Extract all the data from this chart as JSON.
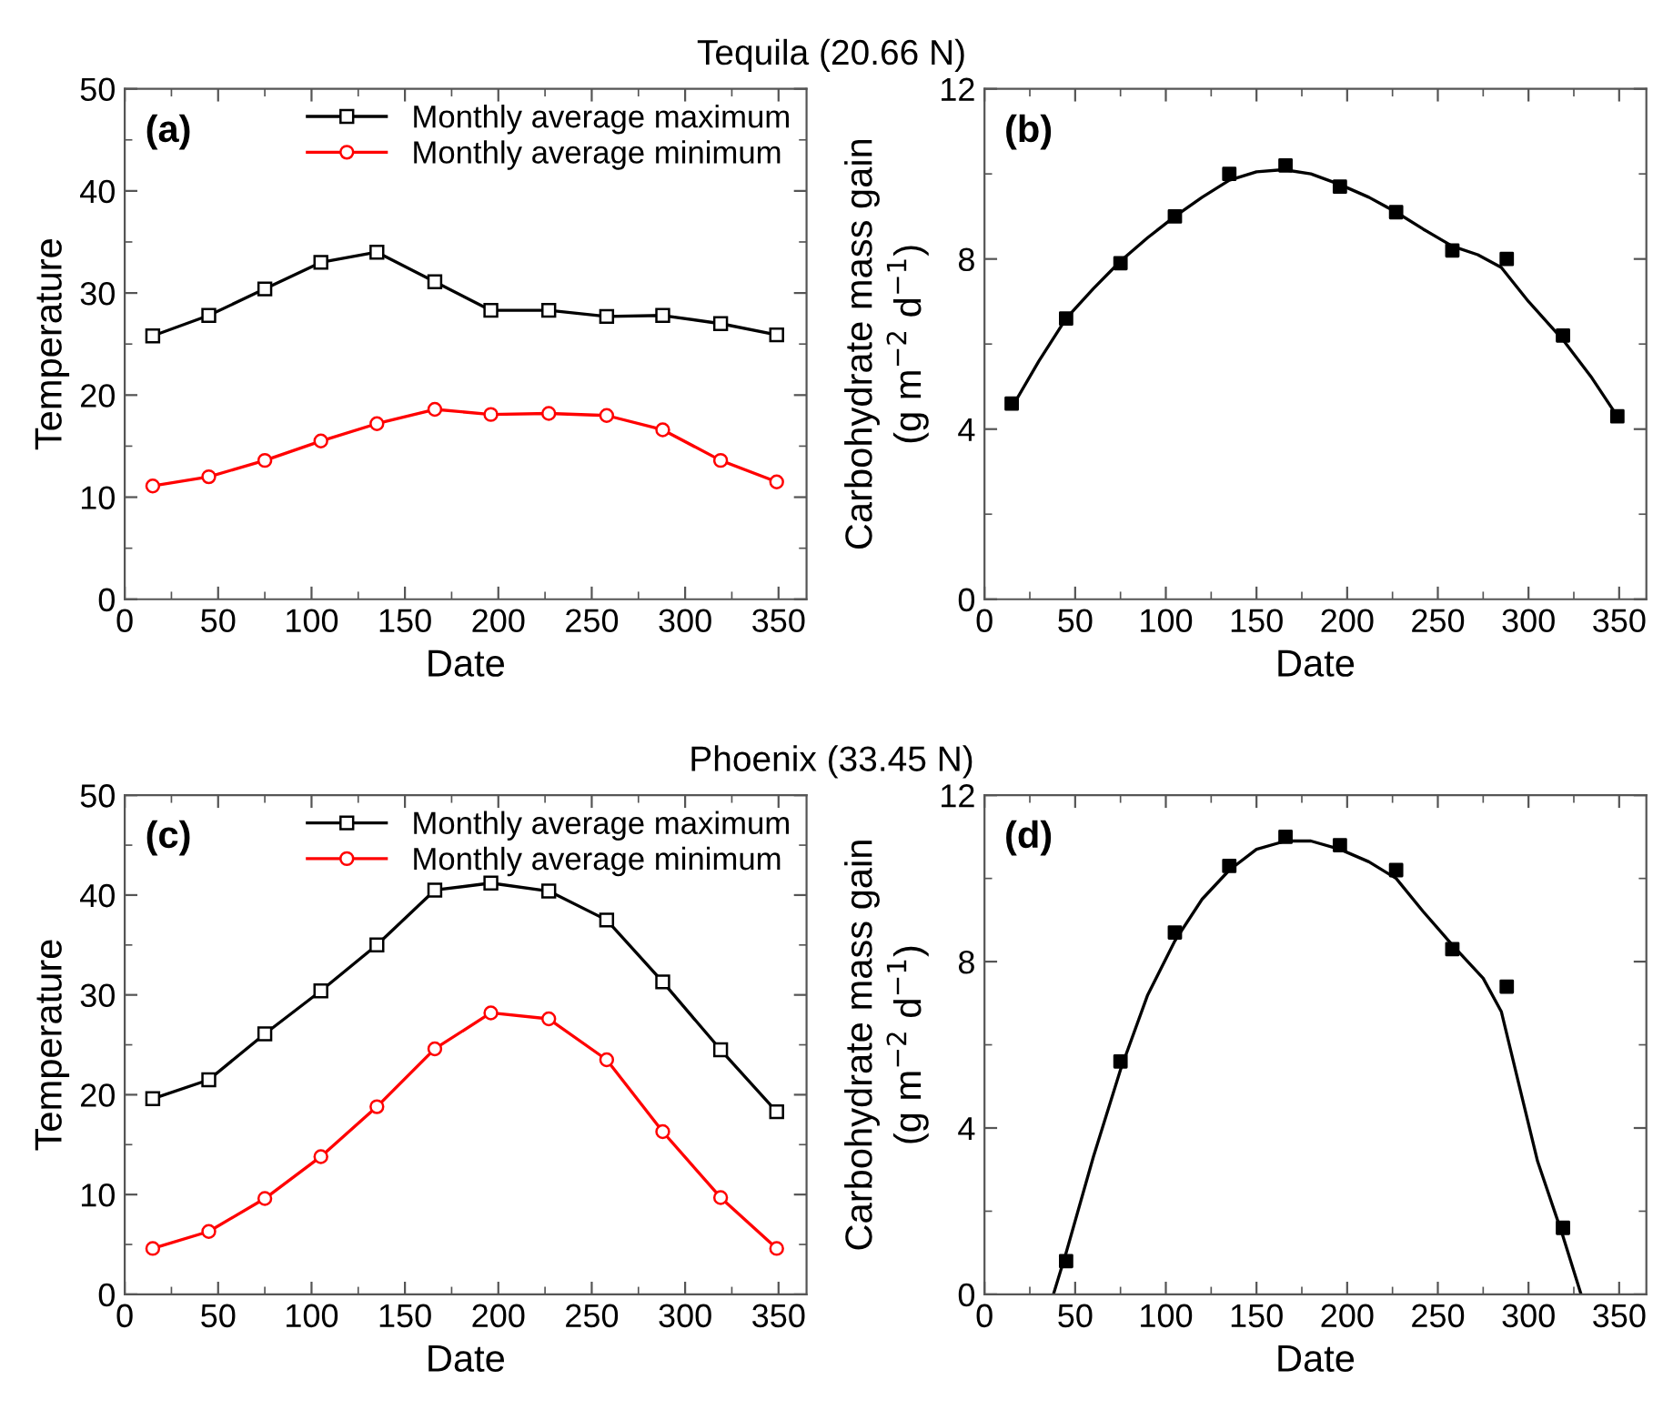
{
  "chart_data": [
    {
      "type": "line",
      "title": "Tequila (20.66 N)",
      "xlabel": "Date",
      "ylabel": "Temperature",
      "annotations": [
        "(a)"
      ],
      "xlim": [
        0,
        365
      ],
      "xticks": [
        0,
        50,
        100,
        150,
        200,
        250,
        300,
        350
      ],
      "ylim": [
        0,
        50
      ],
      "yticks": [
        0,
        10,
        20,
        30,
        40,
        50
      ],
      "grid": false,
      "legend": "top right",
      "x": [
        15,
        45,
        75,
        105,
        135,
        166,
        196,
        227,
        258,
        288,
        319,
        349
      ],
      "series": [
        {
          "name": "Monthly average maximum",
          "color": "#000000",
          "marker": "square",
          "values": [
            25.8,
            27.8,
            30.4,
            33.0,
            34.0,
            31.1,
            28.3,
            28.3,
            27.7,
            27.8,
            27.0,
            25.9
          ]
        },
        {
          "name": "Monthly average minimum",
          "color": "#ff0000",
          "marker": "circle",
          "values": [
            11.1,
            12.0,
            13.6,
            15.5,
            17.2,
            18.6,
            18.1,
            18.2,
            18.0,
            16.6,
            13.6,
            11.5
          ]
        }
      ]
    },
    {
      "type": "scatter",
      "xlabel": "Date",
      "ylabel": "Carbohydrate mass gain\n(g m$^{−2}$ d$^{−1}$)",
      "annotations": [
        "(b)"
      ],
      "xlim": [
        0,
        365
      ],
      "xticks": [
        0,
        50,
        100,
        150,
        200,
        250,
        300,
        350
      ],
      "ylim": [
        0,
        12
      ],
      "yticks": [
        0,
        4,
        8,
        12
      ],
      "grid": false,
      "x": [
        15,
        45,
        75,
        105,
        135,
        166,
        196,
        227,
        258,
        288,
        319,
        349
      ],
      "series": [
        {
          "color": "#000000",
          "marker": "square",
          "values": [
            4.6,
            6.6,
            7.9,
            9.0,
            10.0,
            10.2,
            9.7,
            9.1,
            8.2,
            8.0,
            6.2,
            4.3
          ]
        },
        {
          "type": "line",
          "color": "#000000",
          "marker": "none",
          "x": [
            15,
            30,
            45,
            60,
            75,
            90,
            105,
            120,
            135,
            150,
            165,
            180,
            196,
            212,
            227,
            242,
            258,
            272,
            285,
            300,
            319,
            335,
            349
          ],
          "values": [
            4.5,
            5.6,
            6.6,
            7.3,
            7.95,
            8.5,
            9.0,
            9.45,
            9.85,
            10.05,
            10.1,
            10.0,
            9.75,
            9.45,
            9.1,
            8.7,
            8.3,
            8.1,
            7.8,
            7.0,
            6.1,
            5.2,
            4.3
          ]
        }
      ]
    },
    {
      "type": "line",
      "title": "Phoenix (33.45 N)",
      "xlabel": "Date",
      "ylabel": "Temperature",
      "annotations": [
        "(c)"
      ],
      "xlim": [
        0,
        365
      ],
      "xticks": [
        0,
        50,
        100,
        150,
        200,
        250,
        300,
        350
      ],
      "ylim": [
        0,
        50
      ],
      "yticks": [
        0,
        10,
        20,
        30,
        40,
        50
      ],
      "grid": false,
      "legend": "top right",
      "x": [
        15,
        45,
        75,
        105,
        135,
        166,
        196,
        227,
        258,
        288,
        319,
        349
      ],
      "series": [
        {
          "name": "Monthly average maximum",
          "color": "#000000",
          "marker": "square",
          "values": [
            19.6,
            21.5,
            26.1,
            30.4,
            35.0,
            40.5,
            41.2,
            40.4,
            37.5,
            31.3,
            24.5,
            18.3
          ]
        },
        {
          "name": "Monthly average minimum",
          "color": "#ff0000",
          "marker": "circle",
          "values": [
            4.6,
            6.3,
            9.6,
            13.8,
            18.8,
            24.6,
            28.2,
            27.6,
            23.5,
            16.3,
            9.7,
            4.6
          ]
        }
      ]
    },
    {
      "type": "scatter",
      "xlabel": "Date",
      "ylabel": "Carbohydrate mass gain\n(g m$^{−2}$ d$^{−1}$)",
      "annotations": [
        "(d)"
      ],
      "xlim": [
        0,
        365
      ],
      "xticks": [
        0,
        50,
        100,
        150,
        200,
        250,
        300,
        350
      ],
      "ylim": [
        0,
        12
      ],
      "yticks": [
        0,
        4,
        8,
        12
      ],
      "grid": false,
      "x": [
        45,
        75,
        105,
        135,
        166,
        196,
        227,
        258,
        288,
        319
      ],
      "series": [
        {
          "color": "#000000",
          "marker": "square",
          "values": [
            0.8,
            5.6,
            8.7,
            10.3,
            11.0,
            10.8,
            10.2,
            8.3,
            7.4,
            1.6
          ]
        },
        {
          "type": "line",
          "color": "#000000",
          "marker": "none",
          "x": [
            38,
            45,
            60,
            75,
            90,
            105,
            120,
            135,
            150,
            166,
            180,
            196,
            212,
            227,
            242,
            258,
            275,
            285,
            295,
            305,
            319,
            329
          ],
          "values": [
            0,
            1.0,
            3.3,
            5.4,
            7.2,
            8.5,
            9.5,
            10.2,
            10.7,
            10.9,
            10.9,
            10.7,
            10.4,
            10.0,
            9.2,
            8.4,
            7.6,
            6.8,
            5.0,
            3.2,
            1.4,
            0
          ]
        }
      ]
    }
  ]
}
